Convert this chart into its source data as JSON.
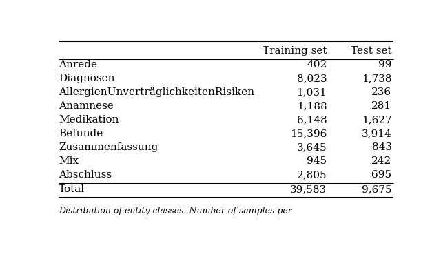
{
  "col_headers": [
    "",
    "Training set",
    "Test set"
  ],
  "rows": [
    [
      "Anrede",
      "402",
      "99"
    ],
    [
      "Diagnosen",
      "8,023",
      "1,738"
    ],
    [
      "AllergienUnverträglichkeitenRisiken",
      "1,031",
      "236"
    ],
    [
      "Anamnese",
      "1,188",
      "281"
    ],
    [
      "Medikation",
      "6,148",
      "1,627"
    ],
    [
      "Befunde",
      "15,396",
      "3,914"
    ],
    [
      "Zusammenfassung",
      "3,645",
      "843"
    ],
    [
      "Mix",
      "945",
      "242"
    ],
    [
      "Abschluss",
      "2,805",
      "695"
    ]
  ],
  "total_row": [
    "Total",
    "39,583",
    "9,675"
  ],
  "caption": "Distribution of entity classes. Number of samples per",
  "bg_color": "#ffffff",
  "text_color": "#000000",
  "font_size": 11,
  "header_font_size": 11
}
